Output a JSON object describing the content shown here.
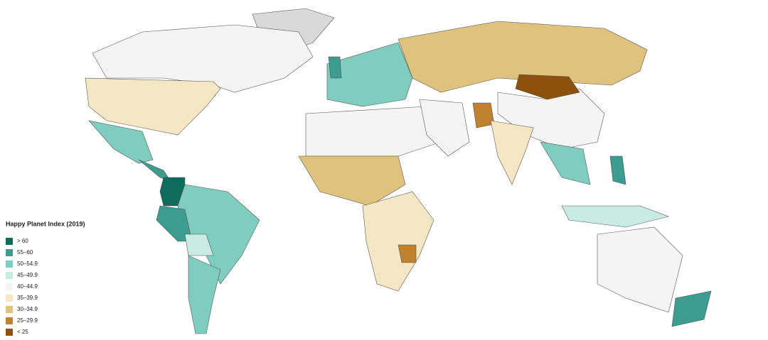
{
  "legend": {
    "title": "Happy Planet Index (2019)",
    "items": [
      {
        "label": "> 60",
        "color": "#0f6b5c"
      },
      {
        "label": "55–60",
        "color": "#3b9c8f"
      },
      {
        "label": "50–54.9",
        "color": "#7fcdbf"
      },
      {
        "label": "45–49.9",
        "color": "#c8ebe4"
      },
      {
        "label": "40–44.9",
        "color": "#f4f4f4"
      },
      {
        "label": "35–39.9",
        "color": "#f5e6c4"
      },
      {
        "label": "30–34.9",
        "color": "#dfc27d"
      },
      {
        "label": "25–29.9",
        "color": "#bf812d"
      },
      {
        "label": "< 25",
        "color": "#8c510a"
      }
    ]
  }
}
